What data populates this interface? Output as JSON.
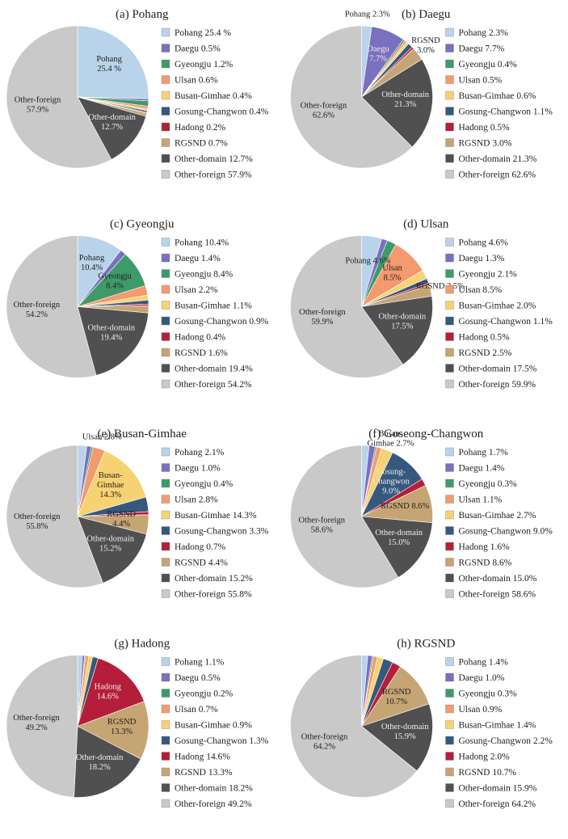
{
  "colors": {
    "Pohang": "#b9d4ea",
    "Daegu": "#7b6fc0",
    "Gyeongju": "#3f9a69",
    "Ulsan": "#f39a6e",
    "Busan-Gimhae": "#f7d272",
    "Gosung-Changwon": "#35587e",
    "Hadong": "#b51e3a",
    "RGSND": "#c6a574",
    "Other-domain": "#505050",
    "Other-foreign": "#c9c9c9"
  },
  "chart_data": [
    {
      "type": "pie",
      "title": "(a) Pohang",
      "categories": [
        "Pohang",
        "Daegu",
        "Gyeongju",
        "Ulsan",
        "Busan-Gimhae",
        "Gosung-Changwon",
        "Hadong",
        "RGSND",
        "Other-domain",
        "Other-foreign"
      ],
      "values": [
        25.4,
        0.5,
        1.2,
        0.6,
        0.4,
        0.4,
        0.2,
        0.7,
        12.7,
        57.9
      ],
      "legend": [
        "Pohang  25.4 %",
        "Daegu  0.5%",
        "Gyeongju  1.2%",
        "Ulsan  0.6%",
        "Busan-Gimhae  0.4%",
        "Gosung-Changwon  0.4%",
        "Hadong  0.2%",
        "RGSND  0.7%",
        "Other-domain  12.7%",
        "Other-foreign  57.9%"
      ],
      "slice_labels": [
        {
          "index": 0,
          "name": "Pohang",
          "pct": "25.4 %",
          "color": "#222"
        },
        {
          "index": 8,
          "name": "Other-domain",
          "pct": "12.7%",
          "color": "#eee"
        },
        {
          "index": 9,
          "name": "Other-foreign",
          "pct": "57.9%",
          "color": "#222"
        }
      ]
    },
    {
      "type": "pie",
      "title": "(b) Daegu",
      "categories": [
        "Pohang",
        "Daegu",
        "Gyeongju",
        "Ulsan",
        "Busan-Gimhae",
        "Gosung-Changwon",
        "Hadong",
        "RGSND",
        "Other-domain",
        "Other-foreign"
      ],
      "values": [
        2.3,
        7.7,
        0.4,
        0.5,
        0.6,
        1.1,
        0.5,
        3.0,
        21.3,
        62.6
      ],
      "legend": [
        "Pohang  2.3%",
        "Daegu  7.7%",
        "Gyeongju  0.4%",
        "Ulsan  0.5%",
        "Busan-Gimhae  0.6%",
        "Gosung-Changwon  1.1%",
        "Hadong  0.5%",
        "RGSND  3.0%",
        "Other-domain  21.3%",
        "Other-foreign  62.6%"
      ],
      "slice_labels": [
        {
          "index": 0,
          "name": "Pohang 2.3%",
          "pct": "",
          "color": "#222"
        },
        {
          "index": 1,
          "name": "Daegu",
          "pct": "7.7%",
          "color": "#eee"
        },
        {
          "index": 7,
          "name": "RGSND",
          "pct": "3.0%",
          "color": "#222"
        },
        {
          "index": 8,
          "name": "Other-domain",
          "pct": "21.3%",
          "color": "#eee"
        },
        {
          "index": 9,
          "name": "Other-foreign",
          "pct": "62.6%",
          "color": "#222"
        }
      ]
    },
    {
      "type": "pie",
      "title": "(c) Gyeongju",
      "categories": [
        "Pohang",
        "Daegu",
        "Gyeongju",
        "Ulsan",
        "Busan-Gimhae",
        "Gosung-Changwon",
        "Hadong",
        "RGSND",
        "Other-domain",
        "Other-foreign"
      ],
      "values": [
        10.4,
        1.4,
        8.4,
        2.2,
        1.1,
        0.9,
        0.4,
        1.6,
        19.4,
        54.2
      ],
      "legend": [
        "Pohang  10.4%",
        "Daegu  1.4%",
        "Gyeongju  8.4%",
        "Ulsan  2.2%",
        "Busan-Gimhae  1.1%",
        "Gosung-Changwon  0.9%",
        "Hadong  0.4%",
        "RGSND  1.6%",
        "Other-domain  19.4%",
        "Other-foreign  54.2%"
      ],
      "slice_labels": [
        {
          "index": 0,
          "name": "Pohang",
          "pct": "10.4%",
          "color": "#222"
        },
        {
          "index": 2,
          "name": "Gyeongju",
          "pct": "8.4%",
          "color": "#222"
        },
        {
          "index": 8,
          "name": "Other-domain",
          "pct": "19.4%",
          "color": "#eee"
        },
        {
          "index": 9,
          "name": "Other-foreign",
          "pct": "54.2%",
          "color": "#222"
        }
      ]
    },
    {
      "type": "pie",
      "title": "(d) Ulsan",
      "categories": [
        "Pohang",
        "Daegu",
        "Gyeongju",
        "Ulsan",
        "Busan-Gimhae",
        "Gosung-Changwon",
        "Hadong",
        "RGSND",
        "Other-domain",
        "Other-foreign"
      ],
      "values": [
        4.6,
        1.3,
        2.1,
        8.5,
        2.0,
        1.1,
        0.5,
        2.5,
        17.5,
        59.9
      ],
      "legend": [
        "Pohang  4.6%",
        "Daegu  1.3%",
        "Gyeongju  2.1%",
        "Ulsan  8.5%",
        "Busan-Gimhae  2.0%",
        "Gosung-Changwon  1.1%",
        "Hadong  0.5%",
        "RGSND  2.5%",
        "Other-domain  17.5%",
        "Other-foreign  59.9%"
      ],
      "slice_labels": [
        {
          "index": 0,
          "name": "Pohang 4.6%",
          "pct": "",
          "color": "#222"
        },
        {
          "index": 3,
          "name": "Ulsan",
          "pct": "8.5%",
          "color": "#222"
        },
        {
          "index": 7,
          "name": "RGSND 2.5%",
          "pct": "",
          "color": "#222"
        },
        {
          "index": 8,
          "name": "Other-domain",
          "pct": "17.5%",
          "color": "#eee"
        },
        {
          "index": 9,
          "name": "Other-foreign",
          "pct": "59.9%",
          "color": "#222"
        }
      ]
    },
    {
      "type": "pie",
      "title": "(e) Busan-Gimhae",
      "categories": [
        "Pohang",
        "Daegu",
        "Gyeongju",
        "Ulsan",
        "Busan-Gimhae",
        "Gosung-Changwon",
        "Hadong",
        "RGSND",
        "Other-domain",
        "Other-foreign"
      ],
      "values": [
        2.1,
        1.0,
        0.4,
        2.8,
        14.3,
        3.3,
        0.7,
        4.4,
        15.2,
        55.8
      ],
      "legend": [
        "Pohang  2.1%",
        "Daegu  1.0%",
        "Gyeongju  0.4%",
        "Ulsan  2.8%",
        "Busan-Gimhae  14.3%",
        "Gosung-Changwon  3.3%",
        "Hadong  0.7%",
        "RGSND  4.4%",
        "Other-domain  15.2%",
        "Other-foreign  55.8%"
      ],
      "slice_labels": [
        {
          "index": 3,
          "name": "Ulsan 2.8%",
          "pct": "",
          "color": "#222"
        },
        {
          "index": 4,
          "name": "Busan-\nGimhae",
          "pct": "14.3%",
          "color": "#222"
        },
        {
          "index": 7,
          "name": "RGSND",
          "pct": "4.4%",
          "color": "#222"
        },
        {
          "index": 8,
          "name": "Other-domain",
          "pct": "15.2%",
          "color": "#eee"
        },
        {
          "index": 9,
          "name": "Other-foreign",
          "pct": "55.8%",
          "color": "#222"
        }
      ]
    },
    {
      "type": "pie",
      "title": "(f) Goseong-Changwon",
      "categories": [
        "Pohang",
        "Daegu",
        "Gyeongju",
        "Ulsan",
        "Busan-Gimhae",
        "Gosung-Changwon",
        "Hadong",
        "RGSND",
        "Other-domain",
        "Other-foreign"
      ],
      "values": [
        1.7,
        1.4,
        0.3,
        1.1,
        2.7,
        9.0,
        1.6,
        8.6,
        15.0,
        58.6
      ],
      "legend": [
        "Pohang  1.7%",
        "Daegu  1.4%",
        "Gyeongju  0.3%",
        "Ulsan  1.1%",
        "Busan-Gimhae  2.7%",
        "Gosung-Changwon  9.0%",
        "Hadong  1.6%",
        "RGSND  8.6%",
        "Other-domain  15.0%",
        "Other-foreign  58.6%"
      ],
      "slice_labels": [
        {
          "index": 4,
          "name": "Busan-\nGimhae 2.7%",
          "pct": "",
          "color": "#222"
        },
        {
          "index": 5,
          "name": "Gosung-\nChangwon",
          "pct": "9.0%",
          "color": "#eee"
        },
        {
          "index": 7,
          "name": "RGSND 8.6%",
          "pct": "",
          "color": "#222"
        },
        {
          "index": 8,
          "name": "Other-domain",
          "pct": "15.0%",
          "color": "#eee"
        },
        {
          "index": 9,
          "name": "Other-foreign",
          "pct": "58.6%",
          "color": "#222"
        }
      ]
    },
    {
      "type": "pie",
      "title": "(g) Hadong",
      "categories": [
        "Pohang",
        "Daegu",
        "Gyeongju",
        "Ulsan",
        "Busan-Gimhae",
        "Gosung-Changwon",
        "Hadong",
        "RGSND",
        "Other-domain",
        "Other-foreign"
      ],
      "values": [
        1.1,
        0.5,
        0.2,
        0.7,
        0.9,
        1.3,
        14.6,
        13.3,
        18.2,
        49.2
      ],
      "legend": [
        "Pohang  1.1%",
        "Daegu  0.5%",
        "Gyeongju  0.2%",
        "Ulsan  0.7%",
        "Busan-Gimhae  0.9%",
        "Gosung-Changwon  1.3%",
        "Hadong  14.6%",
        "RGSND  13.3%",
        "Other-domain  18.2%",
        "Other-foreign  49.2%"
      ],
      "slice_labels": [
        {
          "index": 6,
          "name": "Hadong",
          "pct": "14.6%",
          "color": "#eee"
        },
        {
          "index": 7,
          "name": "RGSND",
          "pct": "13.3%",
          "color": "#222"
        },
        {
          "index": 8,
          "name": "Other-domain",
          "pct": "18.2%",
          "color": "#eee"
        },
        {
          "index": 9,
          "name": "Other-foreign",
          "pct": "49.2%",
          "color": "#222"
        }
      ]
    },
    {
      "type": "pie",
      "title": "(h) RGSND",
      "categories": [
        "Pohang",
        "Daegu",
        "Gyeongju",
        "Ulsan",
        "Busan-Gimhae",
        "Gosung-Changwon",
        "Hadong",
        "RGSND",
        "Other-domain",
        "Other-foreign"
      ],
      "values": [
        1.4,
        1.0,
        0.3,
        0.9,
        1.4,
        2.2,
        2.0,
        10.7,
        15.9,
        64.2
      ],
      "legend": [
        "Pohang  1.4%",
        "Daegu  1.0%",
        "Gyeongju  0.3%",
        "Ulsan  0.9%",
        "Busan-Gimhae  1.4%",
        "Gosung-Changwon  2.2%",
        "Hadong  2.0%",
        "RGSND  10.7%",
        "Other-domain  15.9%",
        "Other-foreign  64.2%"
      ],
      "slice_labels": [
        {
          "index": 7,
          "name": "RGSND",
          "pct": "10.7%",
          "color": "#222"
        },
        {
          "index": 8,
          "name": "Other-domain",
          "pct": "15.9%",
          "color": "#eee"
        },
        {
          "index": 9,
          "name": "Other-foreign",
          "pct": "64.2%",
          "color": "#222"
        }
      ]
    }
  ]
}
